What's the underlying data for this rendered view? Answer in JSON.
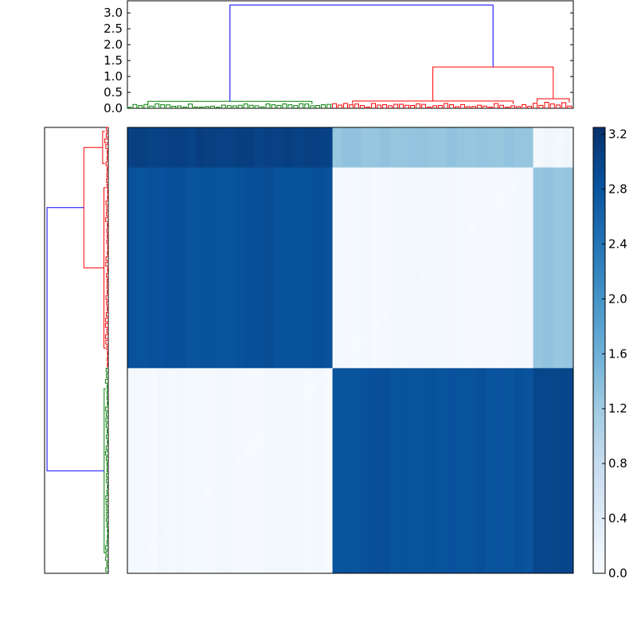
{
  "chart_data": {
    "type": "heatmap",
    "title": "",
    "colormap": "Blues",
    "color_range": [
      0.0,
      3.25
    ],
    "clusters": [
      {
        "id": "green",
        "color": "#008000",
        "fraction": 0.46,
        "internal_height": 0.22
      },
      {
        "id": "red_large",
        "color": "#ff0000",
        "fraction": 0.45,
        "internal_height": 0.23
      },
      {
        "id": "red_small",
        "color": "#ff0000",
        "fraction": 0.09,
        "internal_height": 0.3
      }
    ],
    "row_order": [
      "red_small",
      "red_large",
      "green"
    ],
    "col_order": [
      "green",
      "red_large",
      "red_small"
    ],
    "block_values": [
      [
        3.05,
        1.3,
        0.1
      ],
      [
        2.85,
        0.05,
        1.3
      ],
      [
        0.05,
        2.85,
        3.0
      ]
    ],
    "linkage": {
      "root": {
        "height": 3.25,
        "color": "#0000ff",
        "children": [
          "green",
          "red"
        ]
      },
      "red": {
        "height": 1.3,
        "color": "#ff0000",
        "children": [
          "red_large",
          "red_small"
        ]
      }
    },
    "top_dendrogram": {
      "ylim": [
        0,
        3.38
      ],
      "yticks": [
        "0.0",
        "0.5",
        "1.0",
        "1.5",
        "2.0",
        "2.5",
        "3.0"
      ]
    },
    "colorbar": {
      "range": [
        0,
        3.25
      ],
      "ticks": [
        "0.0",
        "0.4",
        "0.8",
        "1.2",
        "1.6",
        "2.0",
        "2.4",
        "2.8",
        "3.2"
      ]
    }
  }
}
